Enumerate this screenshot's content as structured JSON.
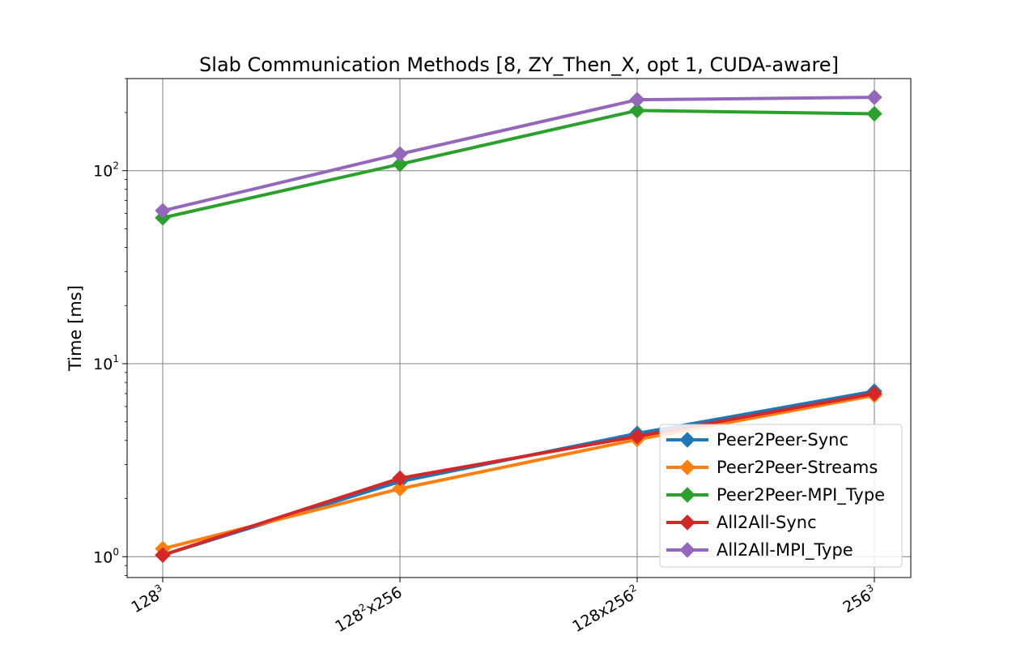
{
  "chart_data": {
    "type": "line",
    "title": "Slab Communication Methods [8, ZY_Then_X, opt 1, CUDA-aware]",
    "xlabel": "",
    "ylabel": "Time [ms]",
    "yscale": "log",
    "ylim": [
      0.78,
      300
    ],
    "grid": true,
    "legend_position": "lower-right",
    "categories": [
      {
        "base": "128",
        "sup": "3",
        "tail": ""
      },
      {
        "base": "128",
        "sup": "2",
        "tail": "x256"
      },
      {
        "base": "128x256",
        "sup": "2",
        "tail": ""
      },
      {
        "base": "256",
        "sup": "3",
        "tail": ""
      }
    ],
    "y_ticks": [
      {
        "value": 1,
        "base": "10",
        "sup": "0"
      },
      {
        "value": 10,
        "base": "10",
        "sup": "1"
      },
      {
        "value": 100,
        "base": "10",
        "sup": "2"
      }
    ],
    "series": [
      {
        "name": "Peer2Peer-Sync",
        "color": "#1f77b4",
        "values": [
          1.02,
          2.45,
          4.35,
          7.2
        ]
      },
      {
        "name": "Peer2Peer-Streams",
        "color": "#ff7f0e",
        "values": [
          1.1,
          2.25,
          4.05,
          6.85
        ]
      },
      {
        "name": "Peer2Peer-MPI_Type",
        "color": "#2ca02c",
        "values": [
          57,
          108,
          205,
          197
        ]
      },
      {
        "name": "All2All-Sync",
        "color": "#d62728",
        "values": [
          1.02,
          2.55,
          4.2,
          7.0
        ]
      },
      {
        "name": "All2All-MPI_Type",
        "color": "#9467bd",
        "values": [
          62,
          122,
          233,
          240
        ]
      }
    ]
  }
}
